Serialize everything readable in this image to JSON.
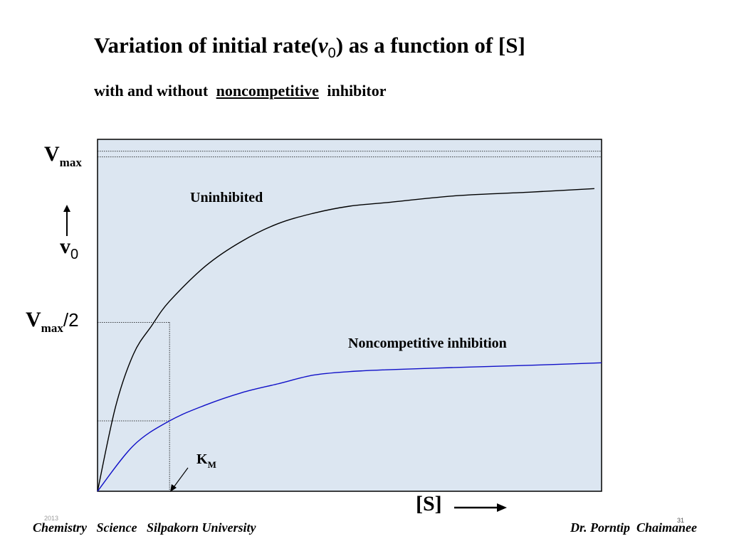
{
  "slide": {
    "title_pre": "Variation of initial rate(",
    "title_v": "v",
    "title_sub": "0",
    "title_post": ") as a function of [S]",
    "subtitle_pre": "with and without",
    "subtitle_ul": "noncompetitive",
    "subtitle_post": "inhibitor"
  },
  "axis": {
    "vmax_main": "V",
    "vmax_sub": "max",
    "v0_main": "v",
    "v0_sub": "0",
    "half_main": "V",
    "half_sub": "max",
    "half_slash": "/2",
    "km_main": "K",
    "km_sub": "M",
    "s_label": "[S]"
  },
  "footer": {
    "left": "Chemistry   Science   Silpakorn University",
    "right": "Dr. Porntip  Chaimanee",
    "year": "2013",
    "page": "31"
  },
  "colors": {
    "plot_bg": "#dce6f1",
    "uninhibited": "#000000",
    "inhibited": "#1010c8"
  },
  "chart_data": {
    "type": "line",
    "title": "Variation of initial rate(v0) as a function of [S]",
    "xlabel": "[S]",
    "ylabel": "v0",
    "xlim": [
      0,
      7
    ],
    "ylim": [
      0,
      1
    ],
    "grid": false,
    "series": [
      {
        "name": "Uninhibited",
        "x": [
          0,
          0.25,
          0.5,
          0.75,
          1.0,
          1.5,
          2.0,
          2.5,
          3.0,
          3.5,
          4.0,
          5.0,
          6.0,
          6.9
        ],
        "y": [
          0,
          0.24,
          0.39,
          0.47,
          0.54,
          0.64,
          0.71,
          0.76,
          0.79,
          0.81,
          0.82,
          0.84,
          0.85,
          0.86
        ]
      },
      {
        "name": "Noncompetitive inhibition",
        "x": [
          0,
          0.5,
          1.0,
          1.5,
          2.0,
          2.5,
          3.0,
          3.5,
          4.0,
          5.0,
          6.0,
          7.0
        ],
        "y": [
          0,
          0.13,
          0.2,
          0.245,
          0.28,
          0.305,
          0.33,
          0.34,
          0.345,
          0.352,
          0.358,
          0.365
        ]
      }
    ],
    "reference_lines": {
      "vmax": 0.95,
      "vmax_half": 0.48,
      "km": 1.0,
      "inhibited_half": 0.2
    },
    "annotations": [
      "Uninhibited",
      "Noncompetitive inhibition"
    ]
  }
}
